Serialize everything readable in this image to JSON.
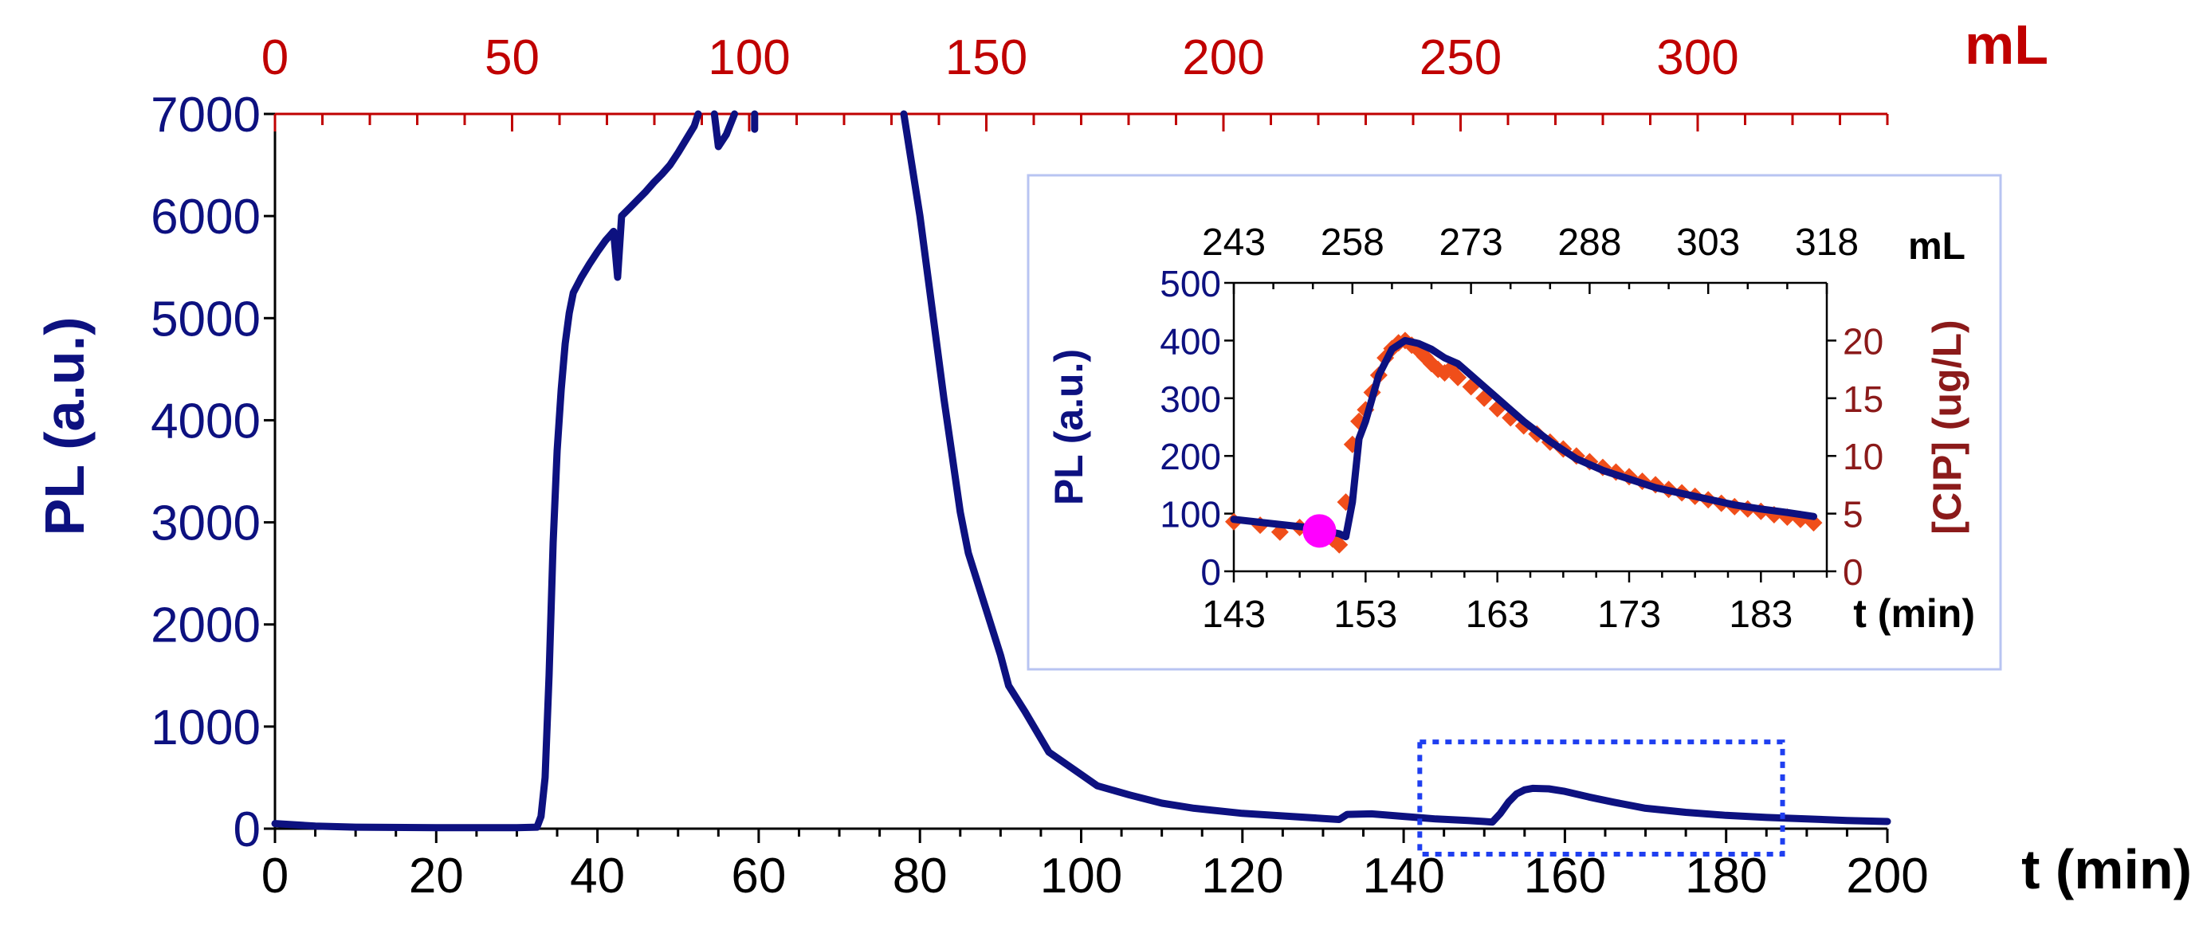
{
  "colors": {
    "pl_series": "#0d1180",
    "volume_axis": "#c00000",
    "cip_axis": "#8b1a1a",
    "cip_marker": "#f04e1a",
    "highlight_marker": "#ff00ff",
    "zoom_box": "#1f3ff0",
    "inset_frame": "#b8c4f2",
    "black": "#000000"
  },
  "chart_data": [
    {
      "type": "line",
      "role": "main",
      "xlabel": "t (min)",
      "ylabel": "PL (a.u.)",
      "top_axis_label": "mL",
      "xlim": [
        0,
        200
      ],
      "ylim": [
        0,
        7000
      ],
      "top_xlim": [
        0,
        340
      ],
      "xticks": [
        0,
        20,
        40,
        60,
        80,
        100,
        120,
        140,
        160,
        180,
        200
      ],
      "yticks": [
        0,
        1000,
        2000,
        3000,
        4000,
        5000,
        6000,
        7000
      ],
      "top_ticks": [
        0,
        50,
        100,
        150,
        200,
        250,
        300
      ],
      "zoom_region": {
        "x": [
          142,
          187
        ],
        "y": [
          -250,
          850
        ]
      },
      "series": [
        {
          "name": "PL",
          "segments": [
            [
              [
                0,
                50
              ],
              [
                5,
                25
              ],
              [
                10,
                15
              ],
              [
                20,
                10
              ],
              [
                30,
                10
              ],
              [
                32.5,
                15
              ],
              [
                33,
                120
              ],
              [
                33.5,
                500
              ],
              [
                34,
                1500
              ],
              [
                34.5,
                2800
              ],
              [
                35,
                3700
              ],
              [
                35.5,
                4300
              ],
              [
                36,
                4750
              ],
              [
                36.5,
                5050
              ],
              [
                37,
                5250
              ],
              [
                38,
                5400
              ],
              [
                39,
                5530
              ],
              [
                40,
                5650
              ],
              [
                41,
                5760
              ],
              [
                42,
                5850
              ],
              [
                42.5,
                5400
              ],
              [
                43,
                6000
              ],
              [
                44,
                6080
              ],
              [
                45,
                6160
              ],
              [
                46,
                6240
              ],
              [
                47,
                6330
              ],
              [
                48,
                6410
              ],
              [
                49,
                6500
              ],
              [
                50,
                6620
              ],
              [
                51,
                6750
              ],
              [
                52,
                6880
              ],
              [
                52.5,
                7000
              ]
            ],
            [
              [
                54.5,
                7000
              ],
              [
                55,
                6680
              ],
              [
                56,
                6800
              ],
              [
                57,
                7000
              ]
            ],
            [
              [
                59.5,
                7000
              ],
              [
                59.5,
                6850
              ]
            ],
            [
              [
                78,
                7000
              ],
              [
                79,
                6500
              ],
              [
                80,
                6000
              ],
              [
                81,
                5400
              ],
              [
                82,
                4800
              ],
              [
                83,
                4200
              ],
              [
                84,
                3650
              ],
              [
                85,
                3100
              ],
              [
                86,
                2700
              ],
              [
                88,
                2200
              ],
              [
                90,
                1700
              ],
              [
                91,
                1400
              ],
              [
                93,
                1150
              ],
              [
                96,
                750
              ],
              [
                100,
                530
              ],
              [
                102,
                420
              ],
              [
                106,
                330
              ],
              [
                110,
                250
              ],
              [
                114,
                200
              ],
              [
                120,
                150
              ],
              [
                126,
                120
              ],
              [
                130,
                100
              ],
              [
                132,
                90
              ],
              [
                133,
                140
              ],
              [
                136,
                145
              ],
              [
                140,
                120
              ],
              [
                144,
                95
              ],
              [
                148,
                80
              ],
              [
                150,
                70
              ],
              [
                151,
                65
              ],
              [
                152,
                150
              ],
              [
                153,
                260
              ],
              [
                154,
                340
              ],
              [
                155,
                380
              ],
              [
                156,
                395
              ],
              [
                158,
                390
              ],
              [
                160,
                365
              ],
              [
                163,
                310
              ],
              [
                166,
                260
              ],
              [
                170,
                200
              ],
              [
                175,
                160
              ],
              [
                180,
                130
              ],
              [
                185,
                110
              ],
              [
                190,
                95
              ],
              [
                195,
                80
              ],
              [
                200,
                70
              ]
            ]
          ]
        }
      ]
    },
    {
      "type": "line+scatter",
      "role": "inset",
      "xlabel": "t (min)",
      "ylabel": "PL (a.u.)",
      "y2label": "[CIP] (ug/L)",
      "top_axis_label": "mL",
      "xlim": [
        143,
        188
      ],
      "ylim": [
        0,
        500
      ],
      "y2lim": [
        0,
        25
      ],
      "top_xlim": [
        243,
        318
      ],
      "xticks": [
        143,
        153,
        163,
        173,
        183
      ],
      "yticks": [
        0,
        100,
        200,
        300,
        400,
        500
      ],
      "y2ticks": [
        0,
        5,
        10,
        15,
        20
      ],
      "top_ticks": [
        243,
        258,
        273,
        288,
        303,
        318
      ],
      "series": [
        {
          "name": "PL",
          "x": [
            143,
            145,
            147,
            149,
            150,
            151,
            151.5,
            152,
            152.5,
            153,
            153.5,
            154,
            155,
            156,
            157,
            158,
            159,
            160,
            161,
            162,
            163,
            165,
            167,
            169,
            171,
            173,
            175,
            177,
            179,
            181,
            183,
            185,
            187
          ],
          "y": [
            90,
            85,
            80,
            75,
            70,
            65,
            60,
            120,
            230,
            260,
            300,
            340,
            385,
            400,
            395,
            385,
            370,
            360,
            340,
            320,
            300,
            260,
            225,
            195,
            175,
            160,
            145,
            135,
            125,
            115,
            108,
            102,
            95
          ]
        },
        {
          "name": "[CIP]",
          "axis": "y2",
          "x": [
            143,
            145,
            146.5,
            148,
            149.5,
            150.5,
            151,
            151.5,
            152,
            152.5,
            153,
            153.5,
            154,
            154.5,
            155,
            155.5,
            156,
            156.5,
            157,
            157.5,
            158,
            158.5,
            159,
            159.5,
            160,
            161,
            162,
            163,
            164,
            165,
            166,
            167,
            168,
            169,
            170,
            171,
            172,
            173,
            174,
            175,
            176,
            177,
            178,
            179,
            180,
            181,
            182,
            183,
            184,
            185,
            186,
            187
          ],
          "y": [
            4.3,
            4.0,
            3.4,
            3.8,
            3.1,
            2.8,
            2.3,
            6.0,
            11.0,
            13.0,
            14.0,
            15.5,
            17.0,
            18.5,
            19.3,
            19.8,
            20.0,
            19.6,
            19.2,
            18.6,
            18.0,
            17.5,
            17.2,
            17.6,
            16.8,
            16.0,
            15.0,
            14.1,
            13.3,
            12.6,
            11.9,
            11.2,
            10.6,
            10.0,
            9.5,
            9.0,
            8.6,
            8.2,
            7.8,
            7.5,
            7.1,
            6.8,
            6.5,
            6.2,
            5.9,
            5.6,
            5.4,
            5.2,
            4.9,
            4.7,
            4.5,
            4.2
          ]
        },
        {
          "name": "highlight",
          "x": [
            149.5
          ],
          "y": [
            70
          ]
        }
      ]
    }
  ]
}
